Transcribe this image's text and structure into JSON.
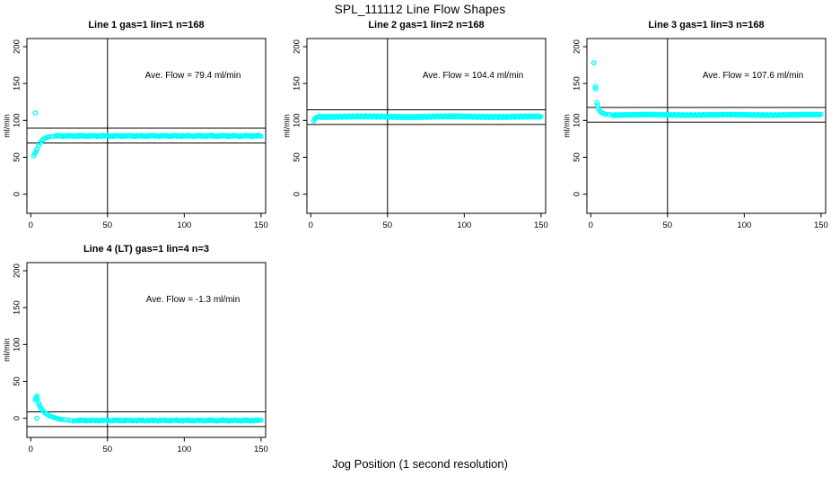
{
  "figure": {
    "title": "SPL_111112  Line Flow Shapes",
    "xlabel": "Jog Position (1 second resolution)",
    "background": "#ffffff",
    "point_color": "#00ffff",
    "line_color": "#000000"
  },
  "chart_data": [
    {
      "type": "scatter",
      "title": "Line 1 gas=1 lin=1 n=168",
      "annotation": "Ave. Flow =  79.4  ml/min",
      "ave_flow": 79.4,
      "ylabel": "ml/min",
      "xlim": [
        -2.5,
        153
      ],
      "ylim": [
        -26,
        211
      ],
      "xticks": [
        0,
        50,
        100,
        150
      ],
      "yticks": [
        0,
        50,
        100,
        150,
        200
      ],
      "hlines": [
        89.4,
        69.4
      ],
      "vline": 50,
      "head_points": [
        [
          3,
          110
        ],
        [
          2,
          52
        ],
        [
          2.6,
          55
        ],
        [
          3.4,
          58
        ],
        [
          4,
          61
        ],
        [
          5,
          65
        ],
        [
          6,
          69
        ],
        [
          7,
          72
        ],
        [
          8,
          74
        ],
        [
          9,
          75.5
        ],
        [
          10,
          76.5
        ],
        [
          11,
          77.2
        ],
        [
          12,
          77.8
        ],
        [
          14,
          78.4
        ]
      ],
      "plateau": {
        "x_start": 16,
        "x_end": 150,
        "step": 1,
        "y": 79,
        "wobble": 0.7
      }
    },
    {
      "type": "scatter",
      "title": "Line 2 gas=1 lin=2 n=168",
      "annotation": "Ave. Flow =  104.4  ml/min",
      "ave_flow": 104.4,
      "ylabel": "ml/min",
      "xlim": [
        -2.5,
        153
      ],
      "ylim": [
        -26,
        211
      ],
      "xticks": [
        0,
        50,
        100,
        150
      ],
      "yticks": [
        0,
        50,
        100,
        150,
        200
      ],
      "hlines": [
        114.4,
        94.4
      ],
      "vline": 50,
      "head_points": [
        [
          2,
          99.5
        ],
        [
          2.6,
          102
        ],
        [
          3.2,
          103.5
        ],
        [
          4,
          104.3
        ]
      ],
      "plateau": {
        "x_start": 5,
        "x_end": 150,
        "step": 0.9,
        "y": 105,
        "wobble": 1.1
      }
    },
    {
      "type": "scatter",
      "title": "Line 3 gas=1 lin=3 n=168",
      "annotation": "Ave. Flow =  107.6  ml/min",
      "ave_flow": 107.6,
      "ylabel": "ml/min",
      "xlim": [
        -2.5,
        153
      ],
      "ylim": [
        -26,
        211
      ],
      "xticks": [
        0,
        50,
        100,
        150
      ],
      "yticks": [
        0,
        50,
        100,
        150,
        200
      ],
      "hlines": [
        117.6,
        97.6
      ],
      "vline": 50,
      "head_points": [
        [
          2,
          178
        ],
        [
          3,
          146
        ],
        [
          3.2,
          143
        ],
        [
          4,
          124
        ],
        [
          4.3,
          120
        ],
        [
          5,
          116
        ],
        [
          6,
          112.5
        ],
        [
          7,
          110.5
        ],
        [
          8,
          109.5
        ],
        [
          9,
          108.8
        ],
        [
          10,
          108.3
        ],
        [
          12,
          107.9
        ]
      ],
      "plateau": {
        "x_start": 14,
        "x_end": 150,
        "step": 0.9,
        "y": 107.5,
        "wobble": 0.7
      }
    },
    {
      "type": "scatter",
      "title": "Line 4 (LT) gas=1 lin=4 n=3",
      "annotation": "Ave. Flow =  -1.3  ml/min",
      "ave_flow": -1.3,
      "ylabel": "ml/min",
      "xlim": [
        -2.5,
        153
      ],
      "ylim": [
        -26,
        211
      ],
      "xticks": [
        0,
        50,
        100,
        150
      ],
      "yticks": [
        0,
        50,
        100,
        150,
        200
      ],
      "hlines": [
        8.7,
        -11.3
      ],
      "vline": 50,
      "head_points": [
        [
          3,
          25
        ],
        [
          3.5,
          28
        ],
        [
          4,
          30
        ],
        [
          4.2,
          26
        ],
        [
          4,
          0
        ],
        [
          5,
          21
        ],
        [
          5.5,
          18
        ],
        [
          6,
          15.5
        ],
        [
          7,
          12.5
        ],
        [
          8,
          10
        ],
        [
          9,
          8
        ],
        [
          10,
          6.3
        ],
        [
          11,
          4.8
        ],
        [
          12,
          3.6
        ],
        [
          13,
          2.6
        ],
        [
          14,
          1.8
        ],
        [
          15,
          1.1
        ],
        [
          16,
          0.4
        ],
        [
          17,
          -0.2
        ],
        [
          18,
          -0.8
        ],
        [
          19,
          -1.2
        ],
        [
          20,
          -1.6
        ],
        [
          22,
          -2.1
        ],
        [
          24,
          -2.5
        ],
        [
          26,
          -2.8
        ]
      ],
      "plateau": {
        "x_start": 28,
        "x_end": 150,
        "step": 1,
        "y": -3,
        "wobble": 0.6
      }
    }
  ]
}
